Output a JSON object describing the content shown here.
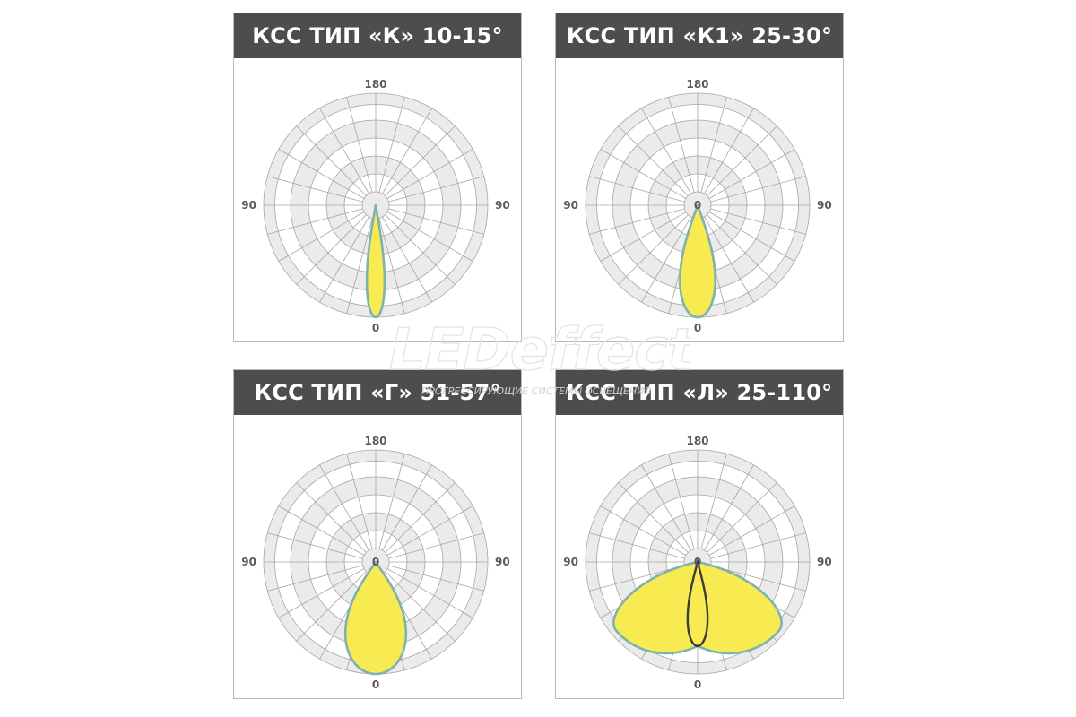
{
  "watermark": {
    "brand": "LEDeffect",
    "tagline": "ПРОГРЕССИРУЮЩИЕ СИСТЕМЫ ОСВЕЩЕНИЯ"
  },
  "colors": {
    "title_bg": "#4d4d4d",
    "title_text": "#ffffff",
    "band": "#ebebeb",
    "grid": "#a6a6a6",
    "lobe_fill": "#f8eb52",
    "lobe_stroke": "#7fb1ad",
    "inner_lobe_stroke": "#3b3b3b"
  },
  "chart_data": [
    {
      "type": "polar",
      "title": "КСС ТИП «К» 10-15°",
      "angle_labels": {
        "top": "180",
        "left": "90",
        "right": "90",
        "bottom": "0"
      },
      "center_label": "",
      "series": [
        {
          "half_width_deg": 10,
          "reach": 1.0
        }
      ]
    },
    {
      "type": "polar",
      "title": "КСС ТИП «К1» 25-30°",
      "angle_labels": {
        "top": "180",
        "left": "90",
        "right": "90",
        "bottom": "0"
      },
      "center_label": "0",
      "series": [
        {
          "half_width_deg": 20,
          "reach": 1.0
        }
      ]
    },
    {
      "type": "polar",
      "title": "КСС ТИП «Г» 51-57°",
      "angle_labels": {
        "top": "180",
        "left": "90",
        "right": "90",
        "bottom": "0"
      },
      "center_label": "0",
      "series": [
        {
          "half_width_deg": 35,
          "reach": 1.0
        }
      ]
    },
    {
      "type": "polar",
      "title": "КСС ТИП «Л» 25-110°",
      "angle_labels": {
        "top": "180",
        "left": "90",
        "right": "90",
        "bottom": "0"
      },
      "center_label": "0",
      "series": [
        {
          "shape": "batwing",
          "peak_angle_deg": 50,
          "peak_reach": 0.95,
          "nadir_reach": 0.75
        },
        {
          "half_width_deg": 15,
          "reach": 0.75,
          "outline_only": true
        }
      ]
    }
  ]
}
